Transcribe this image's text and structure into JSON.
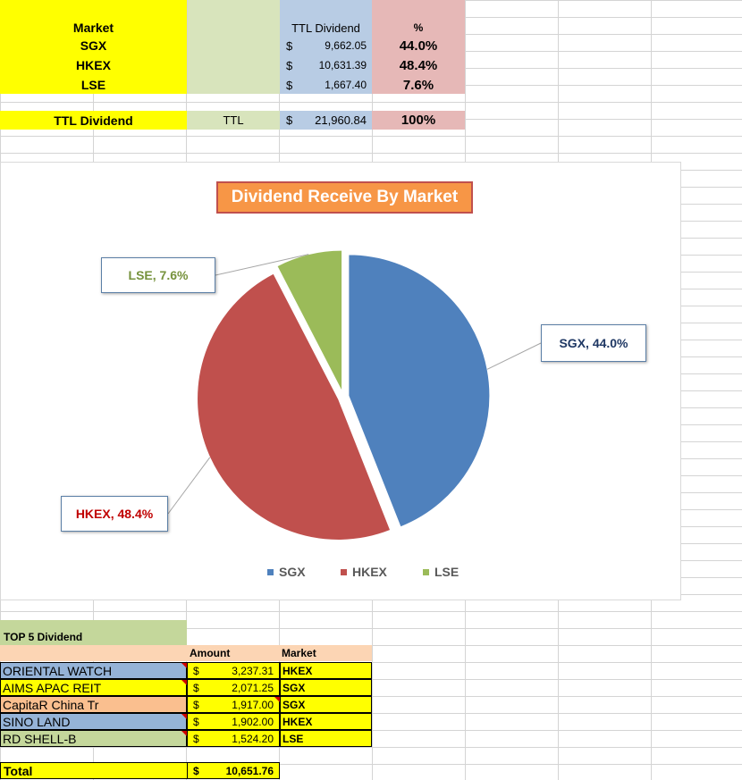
{
  "summary": {
    "header": {
      "market": "Market",
      "ttl_dividend": "TTL Dividend",
      "percent": "%"
    },
    "rows": [
      {
        "market": "SGX",
        "currency": "$",
        "amount": "9,662.05",
        "percent": "44.0%"
      },
      {
        "market": "HKEX",
        "currency": "$",
        "amount": "10,631.39",
        "percent": "48.4%"
      },
      {
        "market": "LSE",
        "currency": "$",
        "amount": "1,667.40",
        "percent": "7.6%"
      }
    ],
    "total": {
      "label": "TTL Dividend",
      "ttl": "TTL",
      "currency": "$",
      "amount": "21,960.84",
      "percent": "100%"
    }
  },
  "chart_data": {
    "type": "pie",
    "title": "Dividend Receive By  Market",
    "categories": [
      "SGX",
      "HKEX",
      "LSE"
    ],
    "values": [
      44.0,
      48.4,
      7.6
    ],
    "labels": [
      "SGX, 44.0%",
      "HKEX, 48.4%",
      "LSE, 7.6%"
    ],
    "colors": [
      "#4f81bd",
      "#c0504d",
      "#9bbb59"
    ],
    "label_colors": [
      "#1f3864",
      "#c00000",
      "#76923c"
    ],
    "legend_position": "bottom",
    "exploded": true
  },
  "top5": {
    "title": "TOP 5 Dividend",
    "header": {
      "amount": "Amount",
      "market": "Market"
    },
    "rows": [
      {
        "name": "ORIENTAL WATCH",
        "currency": "$",
        "amount": "3,237.31",
        "market": "HKEX",
        "name_color": "#95b3d7"
      },
      {
        "name": "AIMS APAC REIT",
        "currency": "$",
        "amount": "2,071.25",
        "market": "SGX",
        "name_color": "#ffff00"
      },
      {
        "name": "CapitaR China Tr",
        "currency": "$",
        "amount": "1,917.00",
        "market": "SGX",
        "name_color": "#fabf8f"
      },
      {
        "name": "SINO LAND",
        "currency": "$",
        "amount": "1,902.00",
        "market": "HKEX",
        "name_color": "#95b3d7"
      },
      {
        "name": "RD SHELL-B",
        "currency": "$",
        "amount": "1,524.20",
        "market": "LSE",
        "name_color": "#c4d79b"
      }
    ],
    "total": {
      "label": "Total",
      "currency": "$",
      "amount": "10,651.76"
    }
  }
}
